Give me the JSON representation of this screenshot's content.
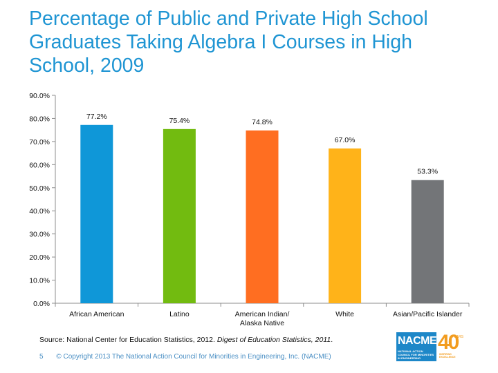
{
  "slide": {
    "title": "Percentage of Public and Private High School Graduates Taking Algebra I Courses in High School, 2009",
    "source_prefix": "Source: National Center for Education Statistics, 2012. ",
    "source_italic": "Digest of Education Statistics, 2011",
    "source_suffix": ".",
    "page_number": "5",
    "copyright": "© Copyright 2013 The National Action Council for Minorities in Engineering, Inc. (NACME)"
  },
  "logo": {
    "wordmark": "NACME",
    "tagline": "NATIONAL ACTION COUNCIL FOR MINORITIES IN ENGINEERING",
    "anniversary": "40",
    "years": "YEARS",
    "tagline2": "INSPIRING EXCELLENCE"
  },
  "chart_data": {
    "type": "bar",
    "categories": [
      "African American",
      "Latino",
      "American Indian/\nAlaska Native",
      "White",
      "Asian/Pacific Islander"
    ],
    "values": [
      77.2,
      75.4,
      74.8,
      67.0,
      53.3
    ],
    "data_labels": [
      "77.2%",
      "75.4%",
      "74.8%",
      "67.0%",
      "53.3%"
    ],
    "colors": [
      "#0f97d8",
      "#72bb10",
      "#ff6e21",
      "#ffb319",
      "#737578"
    ],
    "yticks": [
      "0.0%",
      "10.0%",
      "20.0%",
      "30.0%",
      "40.0%",
      "50.0%",
      "60.0%",
      "70.0%",
      "80.0%",
      "90.0%"
    ],
    "ylim": [
      0,
      90
    ],
    "grid": false,
    "legend": "none",
    "title": "",
    "xlabel": "",
    "ylabel": ""
  }
}
